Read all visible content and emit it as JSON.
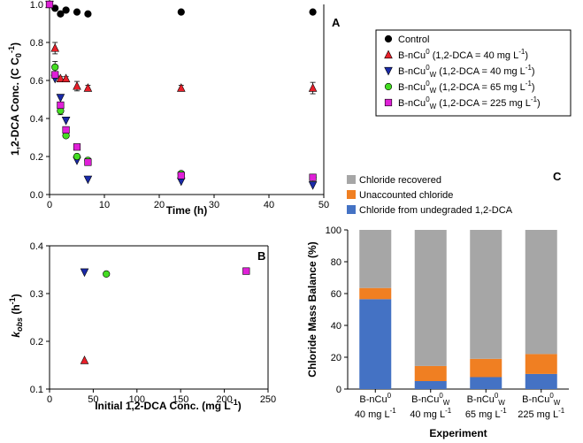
{
  "colors": {
    "control": "#000000",
    "triangle_red": "#e8202a",
    "triangle_blue": "#1a2aa8",
    "circle_green": "#44dd22",
    "square_magenta": "#e020d8",
    "recovered": "#a6a6a6",
    "unaccounted": "#f07f22",
    "undegraded": "#4472c4"
  },
  "chart_data": [
    {
      "panel": "A",
      "type": "scatter",
      "xlabel": "Time (h)",
      "ylabel": "1,2-DCA Conc. (C C",
      "ylabel_sub": "0",
      "ylabel_sup": "-1",
      "ylabel_end": ")",
      "xlim": [
        0,
        50
      ],
      "ylim": [
        0,
        1.0
      ],
      "xticks": [
        "0",
        "10",
        "20",
        "30",
        "40",
        "50"
      ],
      "yticks": [
        "0.0",
        "0.2",
        "0.4",
        "0.6",
        "0.8",
        "1.0"
      ],
      "legend": [
        {
          "pre": "Control",
          "sub": "",
          "sup": "",
          "post": ""
        },
        {
          "pre": "B-nCu",
          "sup": "0",
          "sub": "",
          "post": " (1,2-DCA = 40 mg L",
          "sup2": "-1",
          "end": ")"
        },
        {
          "pre": "B-nCu",
          "sup": "0",
          "sub": "W",
          "post": " (1,2-DCA = 40 mg L",
          "sup2": "-1",
          "end": ")"
        },
        {
          "pre": "B-nCu",
          "sup": "0",
          "sub": "W",
          "post": " (1,2-DCA = 65 mg L",
          "sup2": "-1",
          "end": ")"
        },
        {
          "pre": "B-nCu",
          "sup": "0",
          "sub": "W",
          "post": " (1,2-DCA = 225 mg L",
          "sup2": "-1",
          "end": ")"
        }
      ],
      "series": [
        {
          "name": "Control",
          "marker": "circle",
          "color": "#000000",
          "x": [
            0,
            1,
            2,
            3,
            5,
            7,
            24,
            48
          ],
          "y": [
            1.0,
            0.98,
            0.95,
            0.97,
            0.96,
            0.95,
            0.96,
            0.96
          ]
        },
        {
          "name": "B-nCu0 (40 mg/L)",
          "marker": "triangle",
          "color": "#e8202a",
          "x": [
            0,
            1,
            2,
            3,
            5,
            7,
            24,
            48
          ],
          "y": [
            1.0,
            0.77,
            0.61,
            0.61,
            0.57,
            0.56,
            0.56,
            0.56
          ],
          "err": [
            0,
            0.03,
            0.01,
            0.01,
            0.025,
            0.015,
            0.015,
            0.03
          ]
        },
        {
          "name": "B-nCu0W (40 mg/L)",
          "marker": "triangle-down",
          "color": "#1a2aa8",
          "x": [
            0,
            1,
            2,
            3,
            5,
            7,
            24,
            48
          ],
          "y": [
            1.0,
            0.61,
            0.51,
            0.39,
            0.18,
            0.08,
            0.07,
            0.05
          ]
        },
        {
          "name": "B-nCu0W (65 mg/L)",
          "marker": "circle",
          "color": "#44dd22",
          "x": [
            0,
            1,
            2,
            3,
            5,
            7,
            24,
            48
          ],
          "y": [
            1.0,
            0.67,
            0.44,
            0.31,
            0.2,
            0.18,
            0.11,
            0.09
          ],
          "err": [
            0,
            0.03,
            0.02,
            0.01,
            0.01,
            0.01,
            0.01,
            0.01
          ]
        },
        {
          "name": "B-nCu0W (225 mg/L)",
          "marker": "square",
          "color": "#e020d8",
          "x": [
            0,
            1,
            2,
            3,
            5,
            7,
            24,
            48
          ],
          "y": [
            1.0,
            0.63,
            0.47,
            0.34,
            0.25,
            0.17,
            0.1,
            0.09
          ]
        }
      ]
    },
    {
      "panel": "B",
      "type": "scatter",
      "xlabel": "Initial 1,2-DCA Conc. (mg L",
      "xlabel_sup": "-1",
      "xlabel_end": ")",
      "ylabel_k": "k",
      "ylabel_obs": "obs",
      "ylabel_h": " (h",
      "ylabel_sup": "-1",
      "ylabel_end": ")",
      "xlim": [
        0,
        250
      ],
      "ylim": [
        0.1,
        0.4
      ],
      "xticks": [
        "0",
        "50",
        "100",
        "150",
        "200",
        "250"
      ],
      "yticks": [
        "0.1",
        "0.2",
        "0.3",
        "0.4"
      ],
      "points": [
        {
          "x": 40,
          "y": 0.16,
          "marker": "triangle",
          "color": "#e8202a"
        },
        {
          "x": 40,
          "y": 0.345,
          "marker": "triangle-down",
          "color": "#1a2aa8"
        },
        {
          "x": 65,
          "y": 0.341,
          "marker": "circle",
          "color": "#44dd22"
        },
        {
          "x": 225,
          "y": 0.347,
          "marker": "square",
          "color": "#e020d8"
        }
      ]
    },
    {
      "panel": "C",
      "type": "bar",
      "stacked": true,
      "xlabel": "Experiment",
      "ylabel": "Chloride Mass Balance (%)",
      "ylim": [
        0,
        100
      ],
      "yticks": [
        "0",
        "20",
        "40",
        "60",
        "80",
        "100"
      ],
      "categories": [
        {
          "l1": "B-nCu",
          "sup": "0",
          "sub": "",
          "l2": "40 mg L",
          "sup2": "-1"
        },
        {
          "l1": "B-nCu",
          "sup": "0",
          "sub": "W",
          "l2": "40 mg L",
          "sup2": "-1"
        },
        {
          "l1": "B-nCu",
          "sup": "0",
          "sub": "W",
          "l2": "65 mg L",
          "sup2": "-1"
        },
        {
          "l1": "B-nCu",
          "sup": "0",
          "sub": "W",
          "l2": "225 mg L",
          "sup2": "-1"
        }
      ],
      "legend": [
        "Chloride recovered",
        "Unaccounted chloride",
        "Chloride from undegraded 1,2-DCA"
      ],
      "series": [
        {
          "name": "Chloride from undegraded 1,2-DCA",
          "color": "#4472c4",
          "values": [
            56.5,
            5,
            7.5,
            9.5
          ]
        },
        {
          "name": "Unaccounted chloride",
          "color": "#f07f22",
          "values": [
            7,
            9.5,
            11.5,
            12.5
          ]
        },
        {
          "name": "Chloride recovered",
          "color": "#a6a6a6",
          "values": [
            36.5,
            85.5,
            81,
            78
          ]
        }
      ]
    }
  ]
}
